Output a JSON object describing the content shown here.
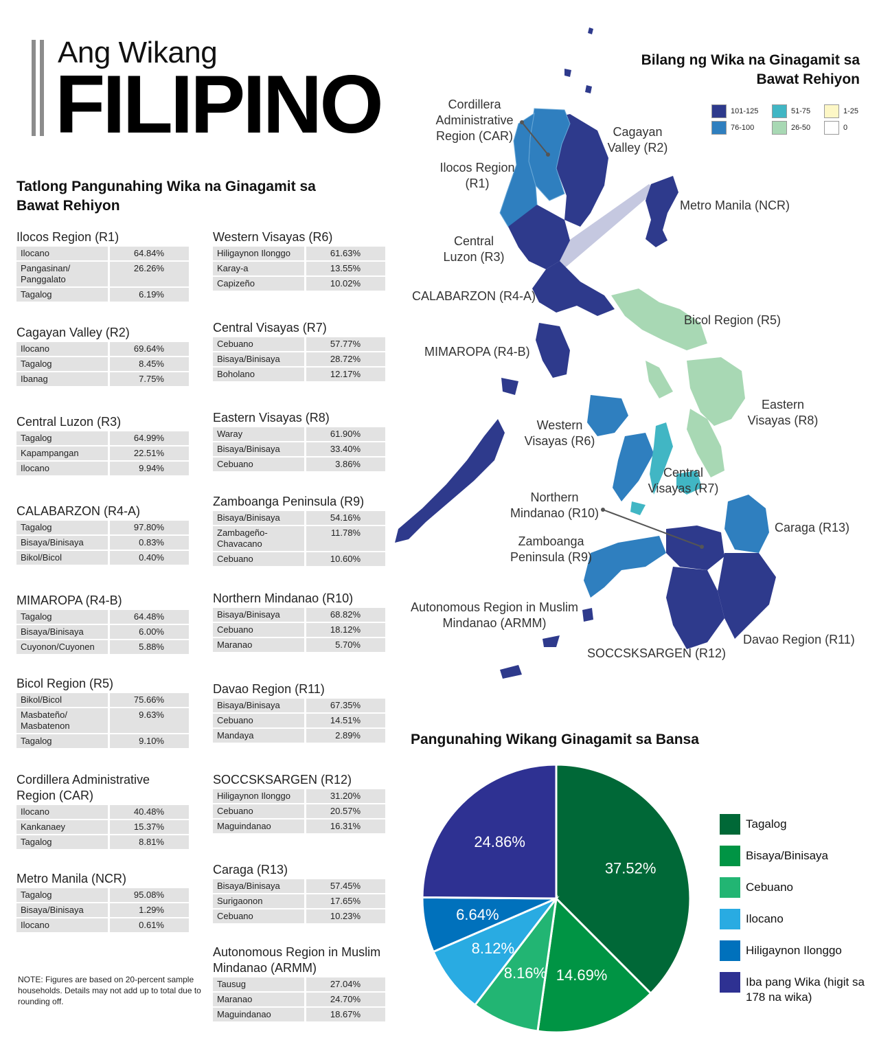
{
  "header": {
    "title_small": "Ang Wikang",
    "title_big": "FILIPINO"
  },
  "left_heading": "Tatlong Pangunahing Wika na Ginagamit sa Bawat Rehiyon",
  "regions_left": [
    {
      "name": "Ilocos Region (R1)",
      "rows": [
        [
          "Ilocano",
          "64.84%"
        ],
        [
          "Pangasinan/ Panggalato",
          "26.26%"
        ],
        [
          "Tagalog",
          "6.19%"
        ]
      ]
    },
    {
      "name": "Cagayan Valley (R2)",
      "rows": [
        [
          "Ilocano",
          "69.64%"
        ],
        [
          "Tagalog",
          "8.45%"
        ],
        [
          "Ibanag",
          "7.75%"
        ]
      ]
    },
    {
      "name": "Central Luzon (R3)",
      "rows": [
        [
          "Tagalog",
          "64.99%"
        ],
        [
          "Kapampangan",
          "22.51%"
        ],
        [
          "Ilocano",
          "9.94%"
        ]
      ]
    },
    {
      "name": "CALABARZON (R4-A)",
      "rows": [
        [
          "Tagalog",
          "97.80%"
        ],
        [
          "Bisaya/Binisaya",
          "0.83%"
        ],
        [
          "Bikol/Bicol",
          "0.40%"
        ]
      ]
    },
    {
      "name": "MIMAROPA (R4-B)",
      "rows": [
        [
          "Tagalog",
          "64.48%"
        ],
        [
          "Bisaya/Binisaya",
          "6.00%"
        ],
        [
          "Cuyonon/Cuyonen",
          "5.88%"
        ]
      ]
    },
    {
      "name": "Bicol Region (R5)",
      "rows": [
        [
          "Bikol/Bicol",
          "75.66%"
        ],
        [
          "Masbateño/ Masbatenon",
          "9.63%"
        ],
        [
          "Tagalog",
          "9.10%"
        ]
      ]
    },
    {
      "name": "Cordillera Administrative Region (CAR)",
      "rows": [
        [
          "Ilocano",
          "40.48%"
        ],
        [
          "Kankanaey",
          "15.37%"
        ],
        [
          "Tagalog",
          "8.81%"
        ]
      ]
    },
    {
      "name": "Metro Manila (NCR)",
      "rows": [
        [
          "Tagalog",
          "95.08%"
        ],
        [
          "Bisaya/Binisaya",
          "1.29%"
        ],
        [
          "Ilocano",
          "0.61%"
        ]
      ]
    }
  ],
  "regions_right": [
    {
      "name": "Western Visayas (R6)",
      "rows": [
        [
          "Hiligaynon Ilonggo",
          "61.63%"
        ],
        [
          "Karay-a",
          "13.55%"
        ],
        [
          "Capizeño",
          "10.02%"
        ]
      ]
    },
    {
      "name": "Central Visayas (R7)",
      "rows": [
        [
          "Cebuano",
          "57.77%"
        ],
        [
          "Bisaya/Binisaya",
          "28.72%"
        ],
        [
          "Boholano",
          "12.17%"
        ]
      ]
    },
    {
      "name": "Eastern Visayas (R8)",
      "rows": [
        [
          "Waray",
          "61.90%"
        ],
        [
          "Bisaya/Binisaya",
          "33.40%"
        ],
        [
          "Cebuano",
          "3.86%"
        ]
      ]
    },
    {
      "name": "Zamboanga Peninsula (R9)",
      "rows": [
        [
          "Bisaya/Binisaya",
          "54.16%"
        ],
        [
          "Zambageño- Chavacano",
          "11.78%"
        ],
        [
          "Cebuano",
          "10.60%"
        ]
      ]
    },
    {
      "name": "Northern Mindanao (R10)",
      "rows": [
        [
          "Bisaya/Binisaya",
          "68.82%"
        ],
        [
          "Cebuano",
          "18.12%"
        ],
        [
          "Maranao",
          "5.70%"
        ]
      ]
    },
    {
      "name": "Davao Region (R11)",
      "rows": [
        [
          "Bisaya/Binisaya",
          "67.35%"
        ],
        [
          "Cebuano",
          "14.51%"
        ],
        [
          "Mandaya",
          "2.89%"
        ]
      ]
    },
    {
      "name": "SOCCSKSARGEN (R12)",
      "rows": [
        [
          "Hiligaynon Ilonggo",
          "31.20%"
        ],
        [
          "Cebuano",
          "20.57%"
        ],
        [
          "Maguindanao",
          "16.31%"
        ]
      ]
    },
    {
      "name": "Caraga (R13)",
      "rows": [
        [
          "Bisaya/Binisaya",
          "57.45%"
        ],
        [
          "Surigaonon",
          "17.65%"
        ],
        [
          "Cebuano",
          "10.23%"
        ]
      ]
    },
    {
      "name": "Autonomous Region in Muslim Mindanao (ARMM)",
      "rows": [
        [
          "Tausug",
          "27.04%"
        ],
        [
          "Maranao",
          "24.70%"
        ],
        [
          "Maguindanao",
          "18.67%"
        ]
      ]
    }
  ],
  "note": "NOTE:  Figures are based on 20-percent sample households. Details may not add up to total due to rounding off.",
  "map": {
    "legend_title": "Bilang ng Wika na Ginagamit sa Bawat Rehiyon",
    "legend": [
      {
        "label": "101-125",
        "color": "#2e3a8c"
      },
      {
        "label": "76-100",
        "color": "#2f7fbf"
      },
      {
        "label": "51-75",
        "color": "#41b6c4"
      },
      {
        "label": "26-50",
        "color": "#a8d8b4"
      },
      {
        "label": "1-25",
        "color": "#fdf7c6"
      },
      {
        "label": "0",
        "color": "#ffffff"
      }
    ],
    "labels": {
      "car": "Cordillera Administrative Region (CAR)",
      "r2": "Cagayan Valley (R2)",
      "r1": "Ilocos Region (R1)",
      "ncr": "Metro Manila (NCR)",
      "r3": "Central Luzon (R3)",
      "r4a": "CALABARZON (R4-A)",
      "r5": "Bicol Region (R5)",
      "r4b": "MIMAROPA (R4-B)",
      "r8": "Eastern Visayas (R8)",
      "r6": "Western Visayas (R6)",
      "r7": "Central Visayas (R7)",
      "r10": "Northern Mindanao (R10)",
      "r13": "Caraga (R13)",
      "r9": "Zamboanga Peninsula (R9)",
      "armm": "Autonomous Region in Muslim Mindanao (ARMM)",
      "r11": "Davao Region (R11)",
      "r12": "SOCCSKSARGEN (R12)"
    }
  },
  "chart_data": {
    "type": "pie",
    "title": "Pangunahing Wikang Ginagamit sa Bansa",
    "slices": [
      {
        "name": "Tagalog",
        "value": 37.52,
        "label": "37.52%",
        "color": "#006837"
      },
      {
        "name": "Bisaya/Binisaya",
        "value": 14.69,
        "label": "14.69%",
        "color": "#009444"
      },
      {
        "name": "Cebuano",
        "value": 8.16,
        "label": "8.16%",
        "color": "#22b573"
      },
      {
        "name": "Ilocano",
        "value": 8.12,
        "label": "8.12%",
        "color": "#29abe2"
      },
      {
        "name": "Hiligaynon Ilonggo",
        "value": 6.64,
        "label": "6.64%",
        "color": "#0071bc"
      },
      {
        "name": "Iba pang Wika (higit sa 178 na wika)",
        "value": 24.86,
        "label": "24.86%",
        "color": "#2e3192"
      }
    ],
    "legend_placement": "right"
  }
}
